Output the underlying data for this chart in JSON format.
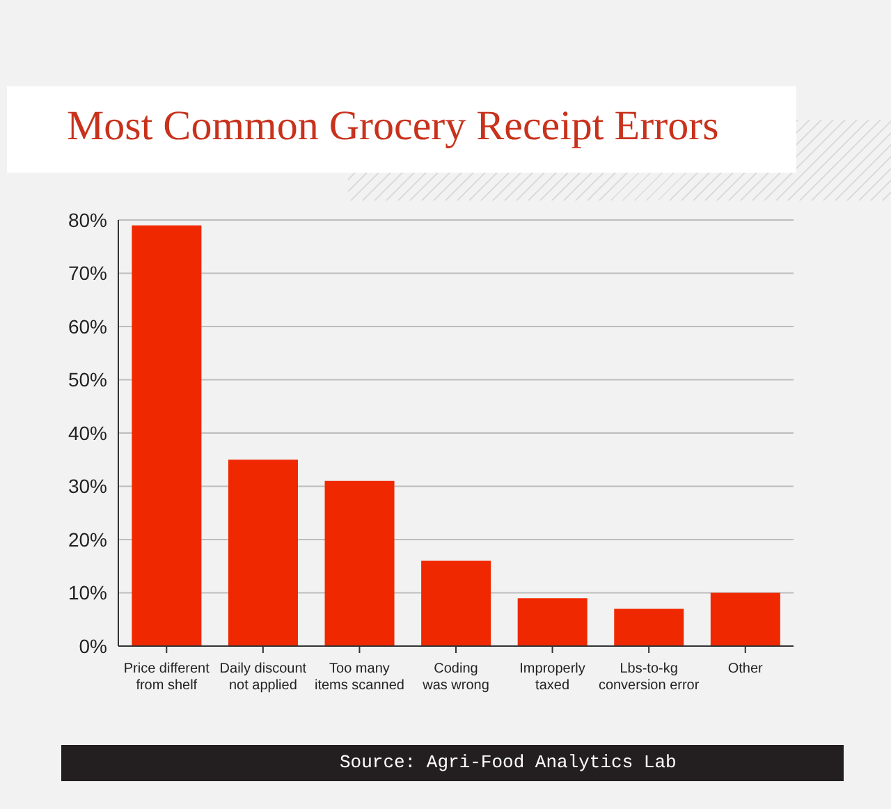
{
  "chart_data": {
    "type": "bar",
    "title": "Most Common Grocery Receipt Errors",
    "categories": [
      "Price different from shelf",
      "Daily discount not applied",
      "Too many items scanned",
      "Coding was wrong",
      "Improperly taxed",
      "Lbs-to-kg conversion error",
      "Other"
    ],
    "values": [
      79,
      35,
      31,
      16,
      9,
      7,
      10
    ],
    "color": "#f02800",
    "ylim": [
      0,
      80
    ],
    "yticks": [
      {
        "value": 0,
        "label": "0%"
      },
      {
        "value": 10,
        "label": "10%"
      },
      {
        "value": 20,
        "label": "20%"
      },
      {
        "value": 30,
        "label": "30%"
      },
      {
        "value": 40,
        "label": "40%"
      },
      {
        "value": 50,
        "label": "50%"
      },
      {
        "value": 60,
        "label": "60%"
      },
      {
        "value": 70,
        "label": "70%"
      },
      {
        "value": 80,
        "label": "80%"
      }
    ],
    "grid": "y",
    "annotations": [
      "Source: Agri-Food Analytics Lab"
    ]
  }
}
